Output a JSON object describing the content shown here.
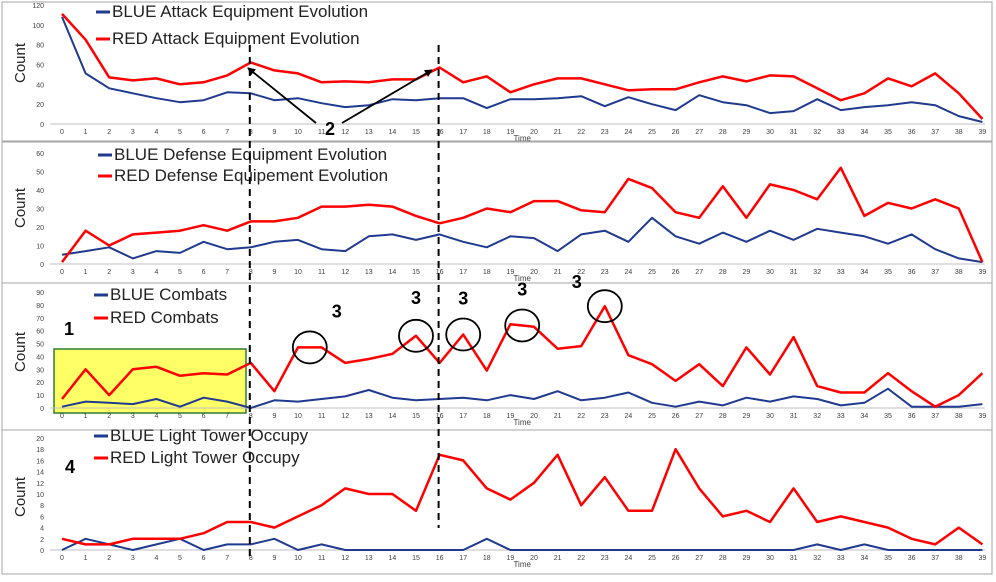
{
  "chart_data": [
    {
      "type": "line",
      "x": [
        0,
        1,
        2,
        3,
        4,
        5,
        6,
        7,
        8,
        9,
        10,
        11,
        12,
        13,
        14,
        15,
        16,
        17,
        18,
        19,
        20,
        21,
        22,
        23,
        24,
        25,
        26,
        27,
        28,
        29,
        30,
        31,
        32,
        33,
        34,
        35,
        36,
        37,
        38,
        39
      ],
      "xlabel": "Time",
      "ylabel": "Count",
      "ylim": [
        0,
        120
      ],
      "yticks": [
        0,
        20,
        40,
        60,
        80,
        100,
        120
      ],
      "legend_position": "top-left",
      "series": [
        {
          "name": "BLUE Attack Equipment Evolution",
          "color": "#1f3a8f",
          "values": [
            108,
            51,
            36,
            31,
            26,
            22,
            24,
            32,
            31,
            24,
            26,
            21,
            17,
            19,
            25,
            24,
            26,
            26,
            16,
            25,
            25,
            26,
            28,
            18,
            27,
            20,
            14,
            29,
            22,
            19,
            11,
            13,
            25,
            14,
            17,
            19,
            22,
            19,
            8,
            2
          ]
        },
        {
          "name": "RED Attack Equipment Evolution",
          "color": "#ff0000",
          "values": [
            111,
            85,
            47,
            44,
            46,
            40,
            42,
            49,
            62,
            54,
            51,
            42,
            43,
            42,
            45,
            45,
            57,
            42,
            48,
            32,
            40,
            46,
            46,
            40,
            34,
            35,
            35,
            42,
            48,
            43,
            49,
            48,
            36,
            24,
            31,
            46,
            38,
            51,
            31,
            5
          ]
        }
      ]
    },
    {
      "type": "line",
      "x": [
        0,
        1,
        2,
        3,
        4,
        5,
        6,
        7,
        8,
        9,
        10,
        11,
        12,
        13,
        14,
        15,
        16,
        17,
        18,
        19,
        20,
        21,
        22,
        23,
        24,
        25,
        26,
        27,
        28,
        29,
        30,
        31,
        32,
        33,
        34,
        35,
        36,
        37,
        38,
        39
      ],
      "xlabel": "Time",
      "ylabel": "Count",
      "ylim": [
        0,
        60
      ],
      "yticks": [
        0,
        10,
        20,
        30,
        40,
        50,
        60
      ],
      "legend_position": "top-left",
      "series": [
        {
          "name": "BLUE Defense Equipment Evolution",
          "color": "#1f3a8f",
          "values": [
            5,
            7,
            9,
            3,
            7,
            6,
            12,
            8,
            9,
            12,
            13,
            8,
            7,
            15,
            16,
            13,
            16,
            12,
            9,
            15,
            14,
            7,
            16,
            18,
            12,
            25,
            15,
            11,
            17,
            12,
            18,
            13,
            19,
            17,
            15,
            11,
            16,
            8,
            3,
            1
          ]
        },
        {
          "name": "RED Defense Equipement Evolution",
          "color": "#ff0000",
          "values": [
            1,
            18,
            10,
            16,
            17,
            18,
            21,
            18,
            23,
            23,
            25,
            31,
            31,
            32,
            31,
            26,
            22,
            25,
            30,
            28,
            34,
            34,
            29,
            28,
            46,
            41,
            28,
            25,
            42,
            25,
            43,
            40,
            35,
            52,
            26,
            33,
            30,
            35,
            30,
            1
          ]
        }
      ]
    },
    {
      "type": "line",
      "x": [
        0,
        1,
        2,
        3,
        4,
        5,
        6,
        7,
        8,
        9,
        10,
        11,
        12,
        13,
        14,
        15,
        16,
        17,
        18,
        19,
        20,
        21,
        22,
        23,
        24,
        25,
        26,
        27,
        28,
        29,
        30,
        31,
        32,
        33,
        34,
        35,
        36,
        37,
        38,
        39
      ],
      "xlabel": "Time",
      "ylabel": "Count",
      "ylim": [
        0,
        90
      ],
      "yticks": [
        0,
        10,
        20,
        30,
        40,
        50,
        60,
        70,
        80,
        90
      ],
      "legend_position": "top-left",
      "series": [
        {
          "name": "BLUE Combats",
          "color": "#1f3a8f",
          "values": [
            1,
            5,
            4,
            3,
            7,
            1,
            8,
            5,
            0,
            6,
            5,
            7,
            9,
            14,
            8,
            6,
            7,
            8,
            6,
            10,
            7,
            13,
            6,
            8,
            12,
            4,
            1,
            5,
            2,
            8,
            5,
            9,
            7,
            2,
            4,
            15,
            1,
            1,
            1,
            3
          ]
        },
        {
          "name": "RED Combats",
          "color": "#ff0000",
          "values": [
            7,
            30,
            10,
            30,
            32,
            25,
            27,
            26,
            35,
            13,
            47,
            47,
            35,
            38,
            42,
            56,
            35,
            57,
            29,
            65,
            63,
            46,
            48,
            79,
            41,
            34,
            21,
            34,
            17,
            47,
            26,
            55,
            17,
            12,
            12,
            27,
            13,
            1,
            10,
            27
          ]
        }
      ]
    },
    {
      "type": "line",
      "x": [
        0,
        1,
        2,
        3,
        4,
        5,
        6,
        7,
        8,
        9,
        10,
        11,
        12,
        13,
        14,
        15,
        16,
        17,
        18,
        19,
        20,
        21,
        22,
        23,
        24,
        25,
        26,
        27,
        28,
        29,
        30,
        31,
        32,
        33,
        34,
        35,
        36,
        37,
        38,
        39
      ],
      "xlabel": "Time",
      "ylabel": "Count",
      "ylim": [
        0,
        20
      ],
      "yticks": [
        0,
        2,
        4,
        6,
        8,
        10,
        12,
        14,
        16,
        18,
        20
      ],
      "legend_position": "top-left",
      "series": [
        {
          "name": "BLUE Light Tower Occupy",
          "color": "#1f3a8f",
          "values": [
            0,
            2,
            1,
            0,
            1,
            2,
            0,
            1,
            1,
            2,
            0,
            1,
            0,
            0,
            0,
            0,
            0,
            0,
            2,
            0,
            0,
            0,
            0,
            0,
            0,
            0,
            0,
            0,
            0,
            0,
            0,
            0,
            1,
            0,
            1,
            0,
            0,
            0,
            0,
            0
          ]
        },
        {
          "name": "RED Light Tower Occupy",
          "color": "#ff0000",
          "values": [
            2,
            1,
            1,
            2,
            2,
            2,
            3,
            5,
            5,
            4,
            6,
            8,
            11,
            10,
            10,
            7,
            17,
            16,
            11,
            9,
            12,
            17,
            8,
            13,
            7,
            7,
            18,
            11,
            6,
            7,
            5,
            11,
            5,
            6,
            5,
            4,
            2,
            1,
            4,
            1
          ]
        }
      ]
    }
  ],
  "annotations": {
    "marker_1": "1",
    "marker_2": "2",
    "marker_3": "3",
    "marker_4": "4",
    "highlight_color": "#ffff66",
    "dashed_lines_at_time": [
      8,
      16
    ],
    "circled_red_combat_times": [
      10.5,
      15,
      17,
      19.5,
      23
    ]
  }
}
